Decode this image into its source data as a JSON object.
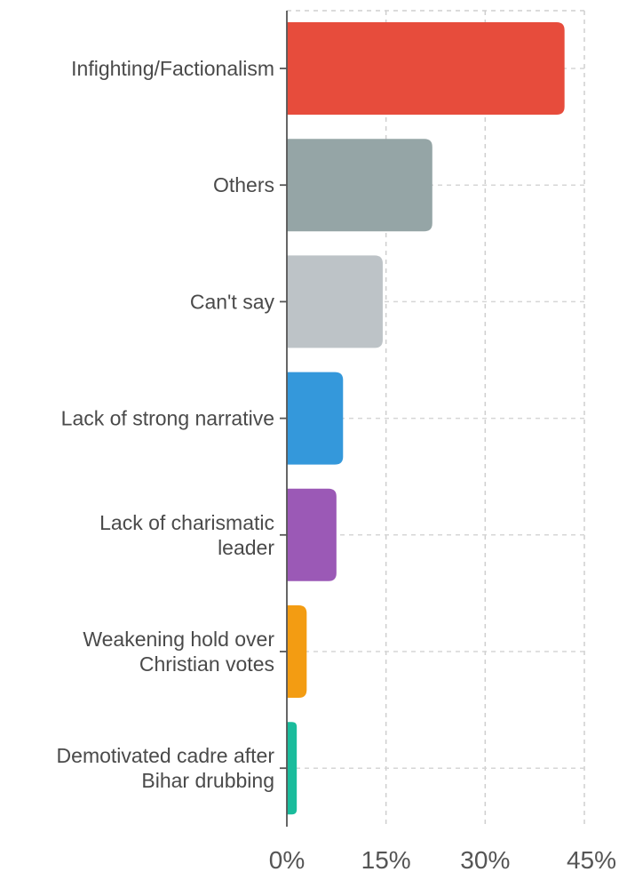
{
  "chart_data": {
    "type": "bar",
    "orientation": "horizontal",
    "categories": [
      [
        "Infighting/Factionalism"
      ],
      [
        "Others"
      ],
      [
        "Can't say"
      ],
      [
        "Lack of strong narrative"
      ],
      [
        "Lack of charismatic",
        "leader"
      ],
      [
        "Weakening hold over",
        "Christian votes"
      ],
      [
        "Demotivated cadre after",
        "Bihar drubbing"
      ]
    ],
    "values": [
      42,
      22,
      14.5,
      8.5,
      7.5,
      3,
      1.5
    ],
    "colors": [
      "#e74c3c",
      "#95a5a6",
      "#bdc3c7",
      "#3498db",
      "#9b59b6",
      "#f39c12",
      "#1abc9c"
    ],
    "xlim": [
      0,
      45
    ],
    "xticks": [
      0,
      15,
      30,
      45
    ],
    "xtick_labels": [
      "0%",
      "15%",
      "30%",
      "45%"
    ],
    "grid": true,
    "title": "",
    "xlabel": "",
    "ylabel": ""
  }
}
